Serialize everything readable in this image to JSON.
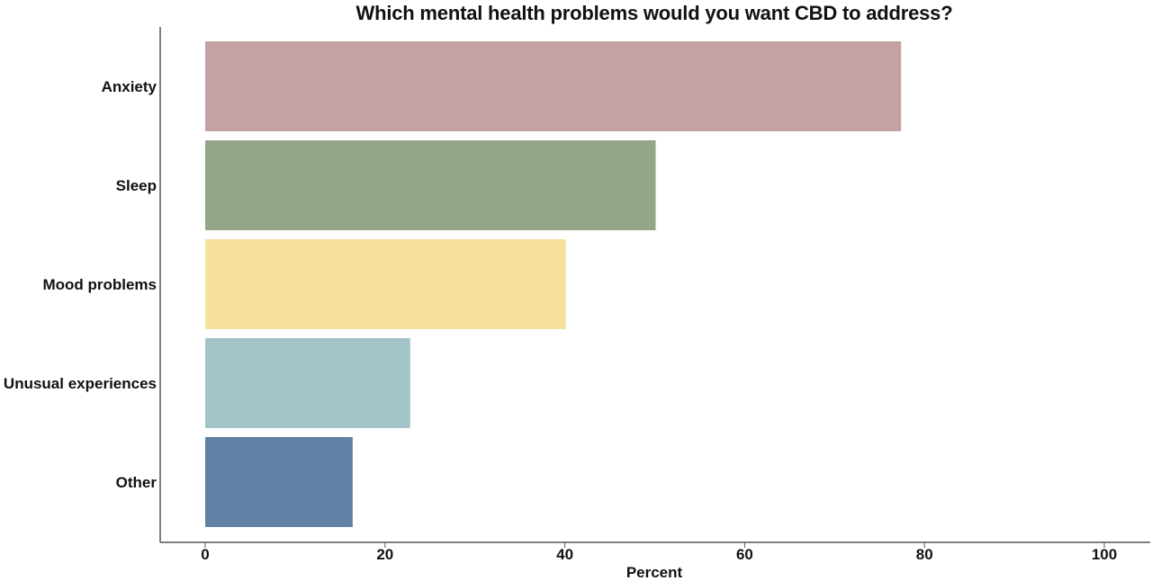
{
  "chart_data": {
    "type": "bar",
    "orientation": "horizontal",
    "title": "Which mental health problems would you want CBD to address?",
    "xlabel": "Percent",
    "ylabel": "",
    "xlim": [
      0,
      100
    ],
    "x_ticks": [
      0,
      20,
      40,
      60,
      80,
      100
    ],
    "grid": false,
    "legend": "none",
    "categories": [
      "Anxiety",
      "Sleep",
      "Mood problems",
      "Unusual experiences",
      "Other"
    ],
    "values": [
      77.4,
      50.1,
      40.1,
      22.8,
      16.4
    ],
    "colors": [
      "#c4a2a4",
      "#93a68a",
      "#f5e09c",
      "#a2c3c8",
      "#5f81a3"
    ]
  }
}
